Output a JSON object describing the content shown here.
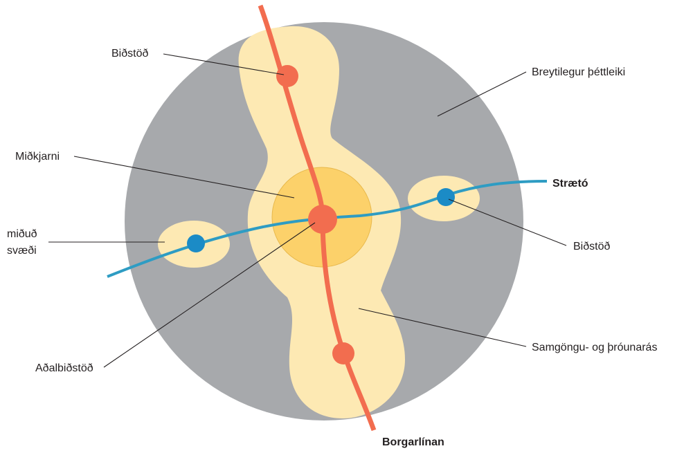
{
  "labels": {
    "stop_top": "Biðstöð",
    "variable_density": "Breytilegur þéttleiki",
    "core": "Miðkjarni",
    "bus": "Strætó",
    "areas_line1": "miðuð",
    "areas_line2": "svæði",
    "stop_right": "Biðstöð",
    "corridor": "Samgöngu- og þróunarás",
    "main_stop": "Aðalbiðstöð",
    "brt_line": "Borgarlínan"
  },
  "colors": {
    "outer_area": "#a7a9ac",
    "corridor_zone": "#fde9b3",
    "core_zone": "#fcd16a",
    "brt_line": "#f26d4f",
    "bus_line": "#2e9cc3",
    "bus_stop": "#1b8bc6",
    "text": "#231f20"
  }
}
